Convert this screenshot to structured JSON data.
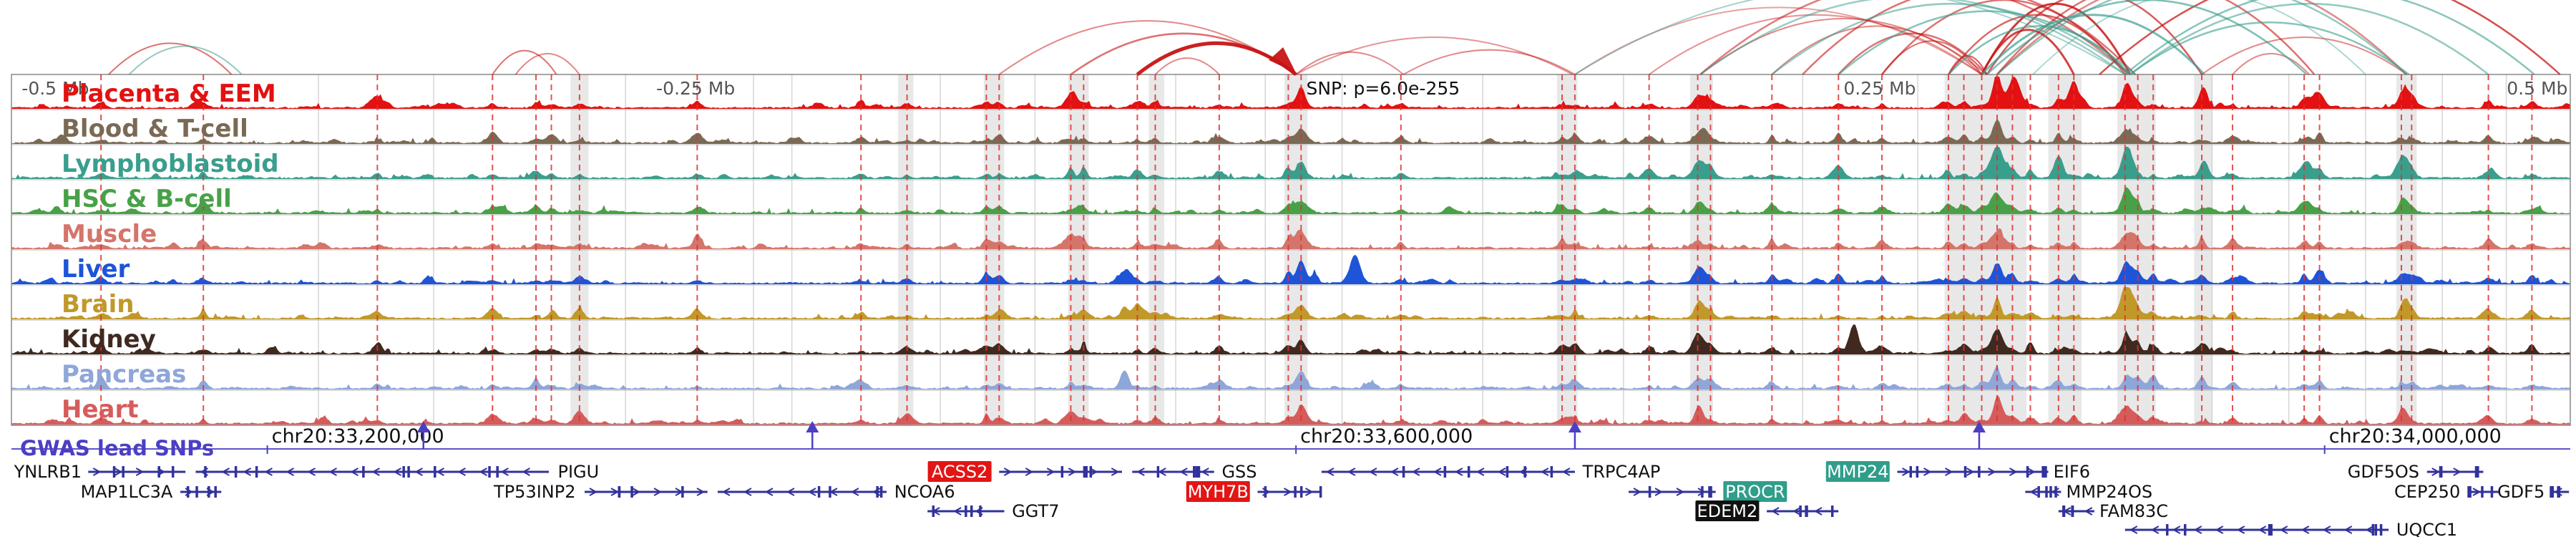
{
  "colors": {
    "arc_red": "#c81414",
    "arc_teal": "#3a9e8d",
    "dashed_line": "#e03030",
    "band": "#d8d8d8",
    "gridline": "#cccccc",
    "panel_border": "#888888",
    "track_separator": "#b5b5b5",
    "axis_text": "#555555",
    "snp_text": "#111111",
    "gwas_purple": "#4b3fc4",
    "gene_blue": "#32329b",
    "gene_text": "#111111",
    "hl_red": "#e31515",
    "hl_teal": "#2f9e8a",
    "hl_black": "#101010"
  },
  "header": {
    "axis_labels": [
      {
        "text": "-0.5 Mb",
        "x": 0.004,
        "anchor": "start"
      },
      {
        "text": "-0.25 Mb",
        "x": 0.252,
        "anchor": "start"
      },
      {
        "text": "0.25 Mb",
        "x": 0.716,
        "anchor": "start"
      },
      {
        "text": "0.5 Mb",
        "x": 0.999,
        "anchor": "end"
      }
    ],
    "snp_label": {
      "text": "SNP: p=6.0e-255",
      "x": 0.506
    }
  },
  "chart_data": {
    "type": "genome-browser",
    "coordinate_labels": [
      {
        "text": "chr20:33,200,000",
        "x": 0.1
      },
      {
        "text": "chr20:33,600,000",
        "x": 0.502
      },
      {
        "text": "chr20:34,000,000",
        "x": 0.904
      }
    ],
    "tracks": [
      {
        "label": "Placenta & EEM",
        "color": "#e31111",
        "major_peaks": [
          {
            "x": 0.776,
            "h": 0.95
          },
          {
            "x": 0.783,
            "h": 0.75
          },
          {
            "x": 0.806,
            "h": 0.55
          },
          {
            "x": 0.827,
            "h": 0.7
          },
          {
            "x": 0.504,
            "h": 0.45
          },
          {
            "x": 0.66,
            "h": 0.35
          },
          {
            "x": 0.857,
            "h": 0.4
          },
          {
            "x": 0.9,
            "h": 0.3
          },
          {
            "x": 0.935,
            "h": 0.35
          },
          {
            "x": 0.414,
            "h": 0.3
          },
          {
            "x": 0.143,
            "h": 0.25
          }
        ]
      },
      {
        "label": "Blood & T-cell",
        "color": "#7a6a55",
        "major_peaks": [
          {
            "x": 0.504,
            "h": 0.3
          },
          {
            "x": 0.66,
            "h": 0.25
          },
          {
            "x": 0.776,
            "h": 0.45
          },
          {
            "x": 0.827,
            "h": 0.35
          },
          {
            "x": 0.268,
            "h": 0.2
          }
        ]
      },
      {
        "label": "Lymphoblastoid",
        "color": "#3a9e8d",
        "major_peaks": [
          {
            "x": 0.776,
            "h": 0.9
          },
          {
            "x": 0.8,
            "h": 0.65
          },
          {
            "x": 0.827,
            "h": 0.95
          },
          {
            "x": 0.857,
            "h": 0.5
          },
          {
            "x": 0.66,
            "h": 0.45
          },
          {
            "x": 0.504,
            "h": 0.35
          },
          {
            "x": 0.897,
            "h": 0.4
          },
          {
            "x": 0.935,
            "h": 0.5
          }
        ]
      },
      {
        "label": "HSC & B-cell",
        "color": "#48a148",
        "major_peaks": [
          {
            "x": 0.827,
            "h": 0.75
          },
          {
            "x": 0.776,
            "h": 0.5
          },
          {
            "x": 0.66,
            "h": 0.3
          },
          {
            "x": 0.897,
            "h": 0.3
          },
          {
            "x": 0.935,
            "h": 0.35
          },
          {
            "x": 0.504,
            "h": 0.3
          }
        ]
      },
      {
        "label": "Muscle",
        "color": "#d4756b",
        "major_peaks": [
          {
            "x": 0.414,
            "h": 0.35
          },
          {
            "x": 0.504,
            "h": 0.3
          },
          {
            "x": 0.776,
            "h": 0.4
          },
          {
            "x": 0.827,
            "h": 0.35
          },
          {
            "x": 0.268,
            "h": 0.2
          }
        ]
      },
      {
        "label": "Liver",
        "color": "#1d54d8",
        "major_peaks": [
          {
            "x": 0.525,
            "h": 0.85
          },
          {
            "x": 0.504,
            "h": 0.4
          },
          {
            "x": 0.66,
            "h": 0.45
          },
          {
            "x": 0.776,
            "h": 0.5
          },
          {
            "x": 0.827,
            "h": 0.45
          },
          {
            "x": 0.435,
            "h": 0.4
          },
          {
            "x": 0.902,
            "h": 0.3
          }
        ]
      },
      {
        "label": "Brain",
        "color": "#c1992a",
        "major_peaks": [
          {
            "x": 0.827,
            "h": 0.9
          },
          {
            "x": 0.776,
            "h": 0.55
          },
          {
            "x": 0.66,
            "h": 0.4
          },
          {
            "x": 0.435,
            "h": 0.35
          },
          {
            "x": 0.504,
            "h": 0.3
          },
          {
            "x": 0.935,
            "h": 0.4
          }
        ]
      },
      {
        "label": "Kidney",
        "color": "#402a20",
        "major_peaks": [
          {
            "x": 0.72,
            "h": 0.95
          },
          {
            "x": 0.776,
            "h": 0.6
          },
          {
            "x": 0.827,
            "h": 0.5
          },
          {
            "x": 0.504,
            "h": 0.35
          },
          {
            "x": 0.66,
            "h": 0.3
          }
        ]
      },
      {
        "label": "Pancreas",
        "color": "#8fa6d9",
        "major_peaks": [
          {
            "x": 0.435,
            "h": 0.6
          },
          {
            "x": 0.776,
            "h": 0.4
          },
          {
            "x": 0.504,
            "h": 0.3
          },
          {
            "x": 0.827,
            "h": 0.3
          }
        ]
      },
      {
        "label": "Heart",
        "color": "#d65c5c",
        "major_peaks": [
          {
            "x": 0.776,
            "h": 0.5
          },
          {
            "x": 0.827,
            "h": 0.45
          },
          {
            "x": 0.414,
            "h": 0.3
          },
          {
            "x": 0.504,
            "h": 0.35
          },
          {
            "x": 0.66,
            "h": 0.3
          },
          {
            "x": 0.935,
            "h": 0.3
          }
        ]
      }
    ],
    "snp_lines": [
      0.035,
      0.075,
      0.143,
      0.188,
      0.205,
      0.211,
      0.222,
      0.268,
      0.332,
      0.35,
      0.381,
      0.386,
      0.414,
      0.419,
      0.44,
      0.447,
      0.472,
      0.499,
      0.504,
      0.543,
      0.606,
      0.611,
      0.64,
      0.659,
      0.664,
      0.688,
      0.714,
      0.731,
      0.757,
      0.763,
      0.77,
      0.776,
      0.782,
      0.789,
      0.8,
      0.806,
      0.826,
      0.831,
      0.837,
      0.856,
      0.868,
      0.896,
      0.902,
      0.934,
      0.938,
      0.968,
      0.985
    ],
    "gridlines": [
      0.12,
      0.165,
      0.24,
      0.29,
      0.305,
      0.363,
      0.4,
      0.455,
      0.49,
      0.52,
      0.575,
      0.63,
      0.7,
      0.745,
      0.86,
      0.89,
      0.92,
      0.95,
      0.975
    ],
    "highlight_bands": [
      {
        "x": 0.2185,
        "w": 0.007
      },
      {
        "x": 0.3465,
        "w": 0.006
      },
      {
        "x": 0.38,
        "w": 0.008
      },
      {
        "x": 0.413,
        "w": 0.008
      },
      {
        "x": 0.4445,
        "w": 0.006
      },
      {
        "x": 0.4975,
        "w": 0.009
      },
      {
        "x": 0.604,
        "w": 0.008
      },
      {
        "x": 0.656,
        "w": 0.009
      },
      {
        "x": 0.7555,
        "w": 0.023
      },
      {
        "x": 0.7785,
        "w": 0.009
      },
      {
        "x": 0.796,
        "w": 0.013
      },
      {
        "x": 0.823,
        "w": 0.015
      },
      {
        "x": 0.853,
        "w": 0.007
      },
      {
        "x": 0.932,
        "w": 0.008
      }
    ],
    "arcs": [
      {
        "x1": 0.038,
        "x2": 0.086,
        "c": "r",
        "h": 0.42,
        "o": 0.6,
        "w": 2
      },
      {
        "x1": 0.046,
        "x2": 0.09,
        "c": "t",
        "h": 0.38,
        "o": 0.55,
        "w": 2
      },
      {
        "x1": 0.188,
        "x2": 0.213,
        "c": "r",
        "h": 0.32,
        "o": 0.6,
        "w": 2
      },
      {
        "x1": 0.197,
        "x2": 0.222,
        "c": "r",
        "h": 0.28,
        "o": 0.5,
        "w": 2
      },
      {
        "x1": 0.386,
        "x2": 0.502,
        "c": "r",
        "h": 0.72,
        "o": 0.5,
        "w": 2
      },
      {
        "x1": 0.414,
        "x2": 0.502,
        "c": "r",
        "h": 0.55,
        "o": 0.6,
        "w": 2.5
      },
      {
        "x1": 0.44,
        "x2": 0.502,
        "c": "r",
        "h": 0.42,
        "o": 0.95,
        "w": 5,
        "arrow": true
      },
      {
        "x1": 0.447,
        "x2": 0.472,
        "c": "r",
        "h": 0.22,
        "o": 0.5,
        "w": 2
      },
      {
        "x1": 0.502,
        "x2": 0.544,
        "c": "r",
        "h": 0.3,
        "o": 0.5,
        "w": 2
      },
      {
        "x1": 0.502,
        "x2": 0.61,
        "c": "r",
        "h": 0.5,
        "o": 0.45,
        "w": 2
      },
      {
        "x1": 0.544,
        "x2": 0.611,
        "c": "r",
        "h": 0.33,
        "o": 0.5,
        "w": 2
      },
      {
        "x1": 0.611,
        "x2": 0.77,
        "c": "r",
        "h": 0.9,
        "o": 0.4,
        "w": 2
      },
      {
        "x1": 0.64,
        "x2": 0.77,
        "c": "r",
        "h": 0.8,
        "o": 0.45,
        "w": 2
      },
      {
        "x1": 0.66,
        "x2": 0.772,
        "c": "r",
        "h": 0.75,
        "o": 0.5,
        "w": 2
      },
      {
        "x1": 0.688,
        "x2": 0.77,
        "c": "r",
        "h": 0.65,
        "o": 0.5,
        "w": 2
      },
      {
        "x1": 0.714,
        "x2": 0.772,
        "c": "r",
        "h": 0.55,
        "o": 0.6,
        "w": 2.5
      },
      {
        "x1": 0.731,
        "x2": 0.77,
        "c": "r",
        "h": 0.45,
        "o": 0.6,
        "w": 2
      },
      {
        "x1": 0.757,
        "x2": 0.772,
        "c": "r",
        "h": 0.25,
        "o": 0.7,
        "w": 2
      },
      {
        "x1": 0.66,
        "x2": 0.828,
        "c": "r",
        "h": 1.25,
        "o": 0.55,
        "w": 2.5
      },
      {
        "x1": 0.7,
        "x2": 0.83,
        "c": "r",
        "h": 1.15,
        "o": 0.6,
        "w": 2.5
      },
      {
        "x1": 0.731,
        "x2": 0.827,
        "c": "r",
        "h": 1.0,
        "o": 0.6,
        "w": 2.5
      },
      {
        "x1": 0.757,
        "x2": 0.826,
        "c": "r",
        "h": 0.8,
        "o": 0.65,
        "w": 2.5
      },
      {
        "x1": 0.77,
        "x2": 0.806,
        "c": "r",
        "h": 0.6,
        "o": 0.8,
        "w": 3
      },
      {
        "x1": 0.77,
        "x2": 0.828,
        "c": "r",
        "h": 0.95,
        "o": 0.85,
        "w": 3
      },
      {
        "x1": 0.772,
        "x2": 0.856,
        "c": "r",
        "h": 1.1,
        "o": 0.7,
        "w": 2.5
      },
      {
        "x1": 0.776,
        "x2": 0.9,
        "c": "r",
        "h": 1.25,
        "o": 0.6,
        "w": 2.5
      },
      {
        "x1": 0.776,
        "x2": 0.936,
        "c": "r",
        "h": 1.35,
        "o": 0.5,
        "w": 2.5
      },
      {
        "x1": 0.856,
        "x2": 0.936,
        "c": "r",
        "h": 0.5,
        "o": 0.5,
        "w": 2
      },
      {
        "x1": 0.868,
        "x2": 0.898,
        "c": "r",
        "h": 0.28,
        "o": 0.5,
        "w": 2
      },
      {
        "x1": 0.816,
        "x2": 0.996,
        "c": "r",
        "h": 1.4,
        "o": 0.75,
        "w": 2.5
      },
      {
        "x1": 0.611,
        "x2": 0.826,
        "c": "t",
        "h": 1.15,
        "o": 0.45,
        "w": 2
      },
      {
        "x1": 0.66,
        "x2": 0.826,
        "c": "t",
        "h": 1.05,
        "o": 0.5,
        "w": 2.5
      },
      {
        "x1": 0.688,
        "x2": 0.828,
        "c": "t",
        "h": 0.95,
        "o": 0.55,
        "w": 2.5
      },
      {
        "x1": 0.714,
        "x2": 0.83,
        "c": "t",
        "h": 0.85,
        "o": 0.6,
        "w": 2.5
      },
      {
        "x1": 0.757,
        "x2": 0.828,
        "c": "t",
        "h": 0.65,
        "o": 0.65,
        "w": 2.5
      },
      {
        "x1": 0.77,
        "x2": 0.857,
        "c": "t",
        "h": 0.8,
        "o": 0.7,
        "w": 3
      },
      {
        "x1": 0.772,
        "x2": 0.897,
        "c": "t",
        "h": 1.0,
        "o": 0.65,
        "w": 2.5
      },
      {
        "x1": 0.776,
        "x2": 0.936,
        "c": "t",
        "h": 1.25,
        "o": 0.55,
        "w": 2.5
      },
      {
        "x1": 0.79,
        "x2": 0.92,
        "c": "t",
        "h": 1.1,
        "o": 0.4,
        "w": 2
      },
      {
        "x1": 0.828,
        "x2": 0.937,
        "c": "t",
        "h": 0.7,
        "o": 0.6,
        "w": 2.5
      },
      {
        "x1": 0.828,
        "x2": 0.968,
        "c": "t",
        "h": 0.95,
        "o": 0.55,
        "w": 2.5
      },
      {
        "x1": 0.826,
        "x2": 0.986,
        "c": "t",
        "h": 1.15,
        "o": 0.6,
        "w": 2.5
      }
    ],
    "gwas": {
      "label": "GWAS lead SNPs",
      "positions": [
        0.161,
        0.313,
        0.611,
        0.769
      ]
    },
    "genes": [
      {
        "name": "YNLRB1",
        "row": 0,
        "x1": 0.03,
        "x2": 0.068,
        "strand": 1,
        "lx": 0.001,
        "anchor": "start"
      },
      {
        "name": "MAP1LC3A",
        "row": 1,
        "x1": 0.066,
        "x2": 0.082,
        "strand": 1,
        "lx": 0.063,
        "anchor": "end"
      },
      {
        "name": "PIGU",
        "row": 0,
        "x1": 0.072,
        "x2": 0.21,
        "strand": -1,
        "lx": 0.2135,
        "anchor": "start"
      },
      {
        "name": "TP53INP2",
        "row": 1,
        "x1": 0.224,
        "x2": 0.272,
        "strand": 1,
        "lx": 0.2205,
        "anchor": "end"
      },
      {
        "name": "NCOA6",
        "row": 1,
        "x1": 0.276,
        "x2": 0.342,
        "strand": -1,
        "lx": 0.345,
        "anchor": "start"
      },
      {
        "name": "GGT7",
        "row": 2,
        "x1": 0.358,
        "x2": 0.388,
        "strand": -1,
        "lx": 0.391,
        "anchor": "start"
      },
      {
        "name": "ACSS2",
        "row": 0,
        "x1": 0.386,
        "x2": 0.434,
        "strand": 1,
        "lx": 0.383,
        "anchor": "end",
        "hl": "red"
      },
      {
        "name": "GSS",
        "row": 0,
        "x1": 0.438,
        "x2": 0.47,
        "strand": -1,
        "lx": 0.473,
        "anchor": "start"
      },
      {
        "name": "MYH7B",
        "row": 1,
        "x1": 0.487,
        "x2": 0.512,
        "strand": 1,
        "lx": 0.484,
        "anchor": "end",
        "hl": "red"
      },
      {
        "name": "TRPC4AP",
        "row": 0,
        "x1": 0.512,
        "x2": 0.611,
        "strand": -1,
        "lx": 0.614,
        "anchor": "start"
      },
      {
        "name": "PROCR",
        "row": 1,
        "x1": 0.632,
        "x2": 0.666,
        "strand": 1,
        "lx": 0.669,
        "anchor": "start",
        "hl": "teal"
      },
      {
        "name": "EDEM2",
        "row": 2,
        "x1": 0.686,
        "x2": 0.714,
        "strand": -1,
        "lx": 0.683,
        "anchor": "end",
        "hl": "black"
      },
      {
        "name": "MMP24",
        "row": 0,
        "x1": 0.737,
        "x2": 0.786,
        "strand": 1,
        "lx": 0.734,
        "anchor": "end",
        "hl": "teal"
      },
      {
        "name": "EIF6",
        "row": 0,
        "x1": 0.786,
        "x2": 0.796,
        "strand": 1,
        "lx": 0.798,
        "anchor": "start"
      },
      {
        "name": "MMP24OS",
        "row": 1,
        "x1": 0.787,
        "x2": 0.801,
        "strand": -1,
        "lx": 0.803,
        "anchor": "start"
      },
      {
        "name": "FAM83C",
        "row": 2,
        "x1": 0.8,
        "x2": 0.814,
        "strand": -1,
        "lx": 0.816,
        "anchor": "start"
      },
      {
        "name": "UQCC1",
        "row": 3,
        "x1": 0.826,
        "x2": 0.929,
        "strand": -1,
        "lx": 0.932,
        "anchor": "start"
      },
      {
        "name": "GDF5OS",
        "row": 0,
        "x1": 0.944,
        "x2": 0.966,
        "strand": 1,
        "lx": 0.941,
        "anchor": "end"
      },
      {
        "name": "CEP250",
        "row": 1,
        "x1": 0.96,
        "x2": 0.972,
        "strand": 1,
        "lx": 0.957,
        "anchor": "end"
      },
      {
        "name": "GDF5",
        "row": 1,
        "x1": 0.992,
        "x2": 0.9995,
        "strand": -1,
        "lx": 0.9715,
        "anchor": "start"
      }
    ]
  }
}
